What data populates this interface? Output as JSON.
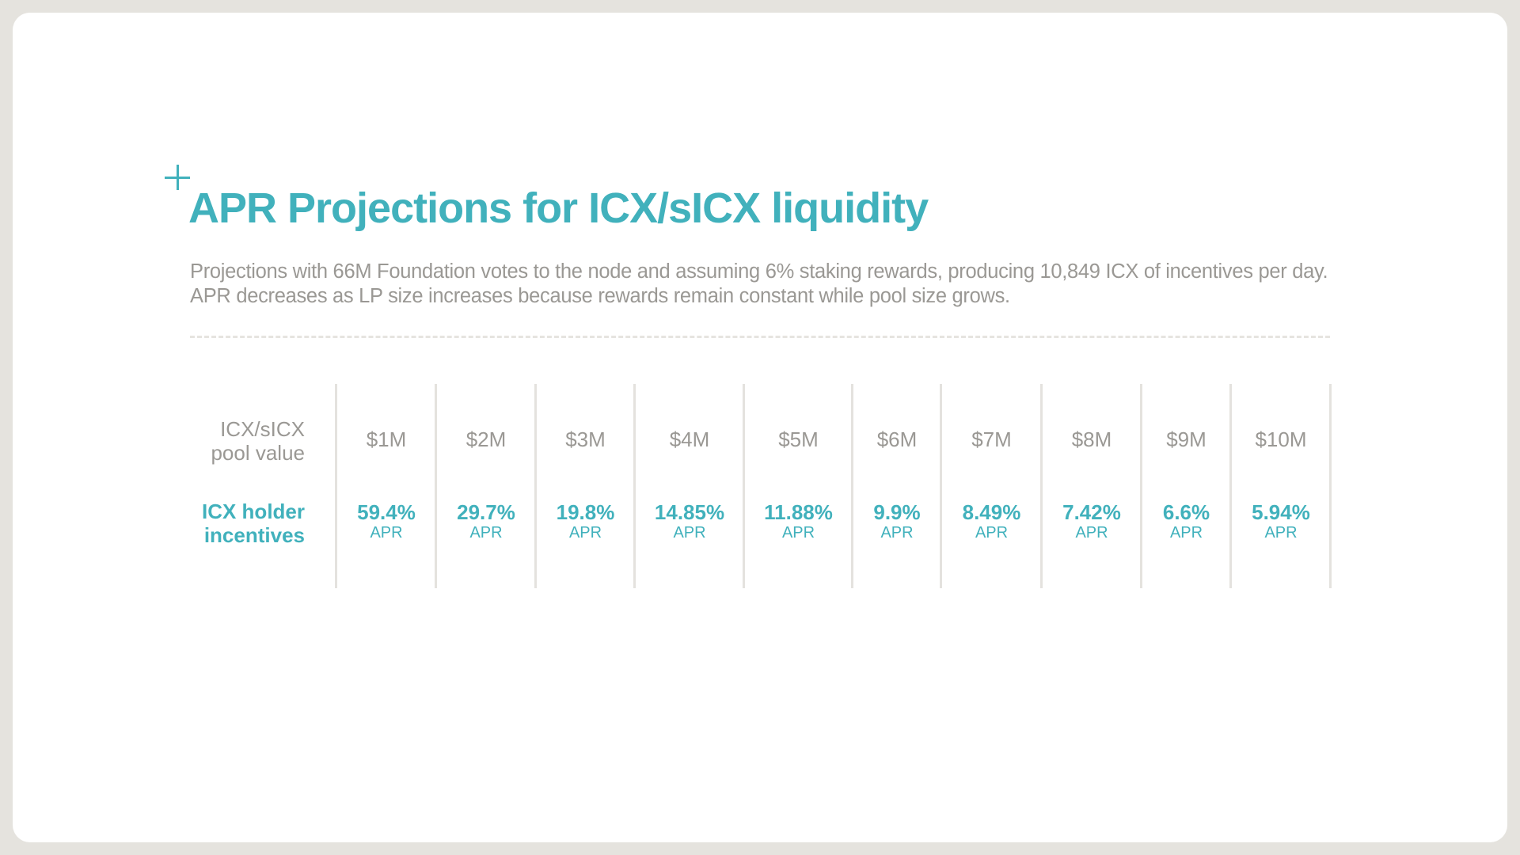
{
  "title": "APR Projections for ICX/sICX liquidity",
  "subtitle": "Projections with 66M Foundation votes to the node and assuming 6% staking rewards, producing 10,849 ICX of incentives per day. APR decreases as LP size increases because rewards remain constant while pool size grows.",
  "accent_color": "#41b1bc",
  "table": {
    "row_label_pool_line1": "ICX/sICX",
    "row_label_pool_line2": "pool value",
    "row_label_incentives_line1": "ICX holder",
    "row_label_incentives_line2": "incentives",
    "apr_unit": "APR",
    "columns": [
      {
        "pool": "$1M",
        "apr": "59.4%"
      },
      {
        "pool": "$2M",
        "apr": "29.7%"
      },
      {
        "pool": "$3M",
        "apr": "19.8%"
      },
      {
        "pool": "$4M",
        "apr": "14.85%"
      },
      {
        "pool": "$5M",
        "apr": "11.88%"
      },
      {
        "pool": "$6M",
        "apr": "9.9%"
      },
      {
        "pool": "$7M",
        "apr": "8.49%"
      },
      {
        "pool": "$8M",
        "apr": "7.42%"
      },
      {
        "pool": "$9M",
        "apr": "6.6%"
      },
      {
        "pool": "$10M",
        "apr": "5.94%"
      }
    ]
  }
}
